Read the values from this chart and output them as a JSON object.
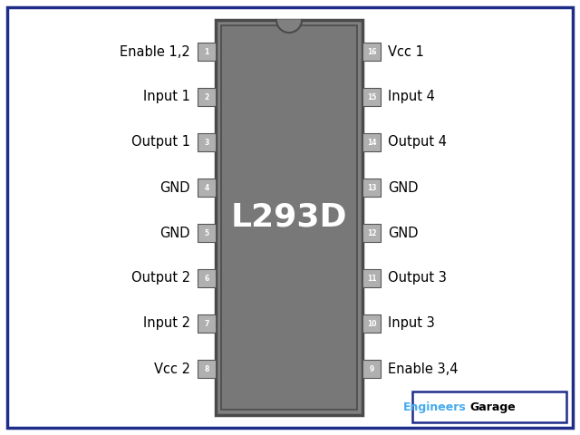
{
  "title": "L293D",
  "bg_color": "#ffffff",
  "border_color": "#1f2d8a",
  "ic_color": "#808080",
  "ic_edge_color": "#4a4a4a",
  "ic_inner_color": "#787878",
  "pin_box_color": "#b0b0b0",
  "pin_box_edge": "#555555",
  "pin_text_color": "#ffffff",
  "label_color": "#000000",
  "ic_label_color": "#ffffff",
  "left_pins": [
    {
      "num": "1",
      "label": "Enable 1,2"
    },
    {
      "num": "2",
      "label": "Input 1"
    },
    {
      "num": "3",
      "label": "Output 1"
    },
    {
      "num": "4",
      "label": "GND"
    },
    {
      "num": "5",
      "label": "GND"
    },
    {
      "num": "6",
      "label": "Output 2"
    },
    {
      "num": "7",
      "label": "Input 2"
    },
    {
      "num": "8",
      "label": "Vcc 2"
    }
  ],
  "right_pins": [
    {
      "num": "16",
      "label": "Vcc 1"
    },
    {
      "num": "15",
      "label": "Input 4"
    },
    {
      "num": "14",
      "label": "Output 4"
    },
    {
      "num": "13",
      "label": "GND"
    },
    {
      "num": "12",
      "label": "GND"
    },
    {
      "num": "11",
      "label": "Output 3"
    },
    {
      "num": "10",
      "label": "Input 3"
    },
    {
      "num": "9",
      "label": "Enable 3,4"
    }
  ],
  "watermark_engineers": "Engineers",
  "watermark_garage": "Garage",
  "watermark_color_engineers": "#44aaee",
  "watermark_color_garage": "#000000",
  "watermark_bg": "#ffffff",
  "watermark_border": "#1f2d8a",
  "ic_font_size": 26,
  "label_font_size": 10.5,
  "pin_font_size": 5.5
}
